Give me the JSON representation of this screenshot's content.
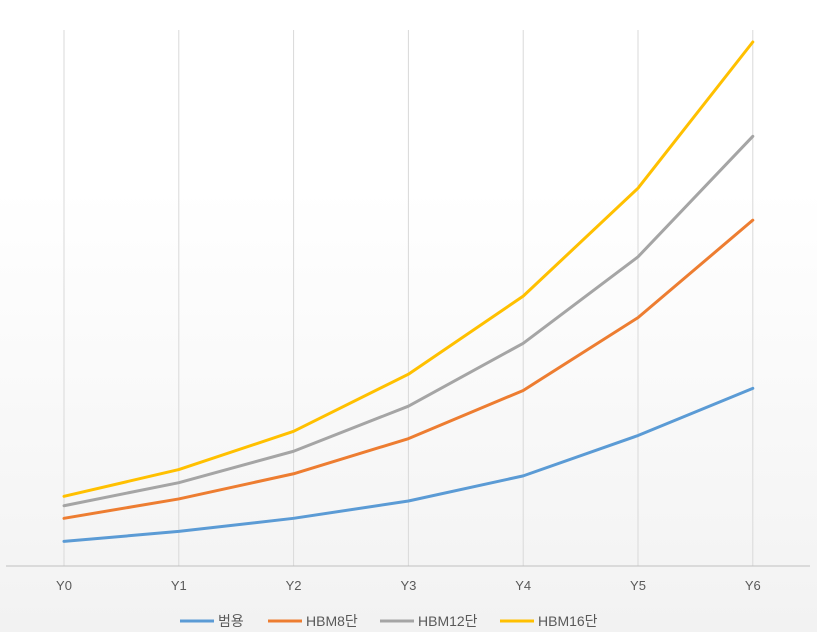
{
  "chart_data": {
    "type": "line",
    "title": "",
    "xlabel": "",
    "ylabel": "",
    "categories": [
      "Y0",
      "Y1",
      "Y2",
      "Y3",
      "Y4",
      "Y5",
      "Y6"
    ],
    "ylim": [
      0,
      100
    ],
    "grid": {
      "vertical": true,
      "horizontal": false
    },
    "legend": "bottom",
    "series": [
      {
        "name": "범용",
        "color": "#5b9bd5",
        "values": [
          4.7,
          6.6,
          9.1,
          12.4,
          17.2,
          24.9,
          33.9
        ]
      },
      {
        "name": "HBM8단",
        "color": "#ed7d31",
        "values": [
          9.1,
          12.8,
          17.6,
          24.3,
          33.5,
          47.4,
          66.0
        ]
      },
      {
        "name": "HBM12단",
        "color": "#a5a5a5",
        "values": [
          11.5,
          15.9,
          21.9,
          30.5,
          42.5,
          59.0,
          82.0
        ]
      },
      {
        "name": "HBM16단",
        "color": "#ffc000",
        "values": [
          13.3,
          18.4,
          25.7,
          36.6,
          51.5,
          72.1,
          100.0
        ]
      }
    ]
  }
}
